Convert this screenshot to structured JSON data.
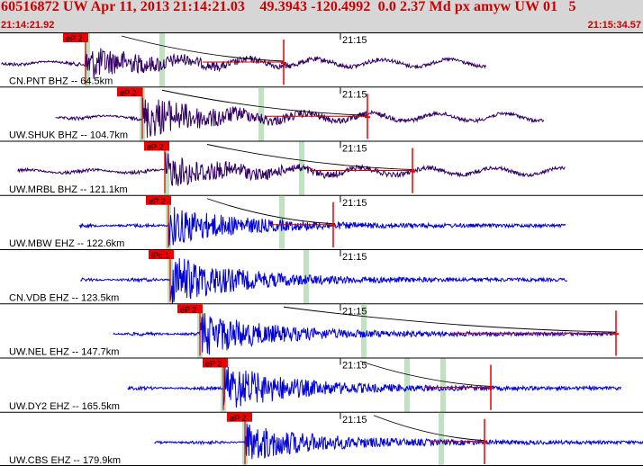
{
  "header": {
    "title": "60516872 UW Apr 11, 2013 21:14:21.03    49.3943 -120.4992  0.0 2.37 Md px amyw UW 01   5",
    "start_time": "21:14:21.92",
    "end_time": "21:15:34.57"
  },
  "colors": {
    "header_bg": "#d6d6d6",
    "header_text": "#cc0000",
    "trace_bhz": "#330066",
    "trace_ehz": "#0000dd",
    "pick_box": "#ee0000",
    "phase_band": "#bfe3bf",
    "decay_curve": "#000000"
  },
  "panels": [
    {
      "station": "CN.PNT BHZ -- 64.5km",
      "pick": "eP 2",
      "minute_label": "21:15",
      "channel": "BHZ"
    },
    {
      "station": "UW.SHUK BHZ -- 104.7km",
      "pick": "eP 2",
      "minute_label": "21:15",
      "channel": "BHZ"
    },
    {
      "station": "UW.MRBL BHZ -- 121.1km",
      "pick": "eP 2",
      "minute_label": "21:15",
      "channel": "BHZ"
    },
    {
      "station": "UW.MBW EHZ -- 122.6km",
      "pick": "eP 2",
      "minute_label": "21:15",
      "channel": "EHZ"
    },
    {
      "station": "CN.VDB EHZ -- 123.5km",
      "pick": "iPc 1",
      "minute_label": "21:15",
      "channel": "EHZ"
    },
    {
      "station": "UW.NEL EHZ -- 147.7km",
      "pick": "eP 2",
      "minute_label": "21:15",
      "channel": "EHZ"
    },
    {
      "station": "UW.DY2 EHZ -- 165.5km",
      "pick": "eP 2",
      "minute_label": "21:15",
      "channel": "EHZ"
    },
    {
      "station": "UW.CBS EHZ -- 179.9km",
      "pick": "eP 2",
      "minute_label": "21:15",
      "channel": "EHZ"
    }
  ]
}
